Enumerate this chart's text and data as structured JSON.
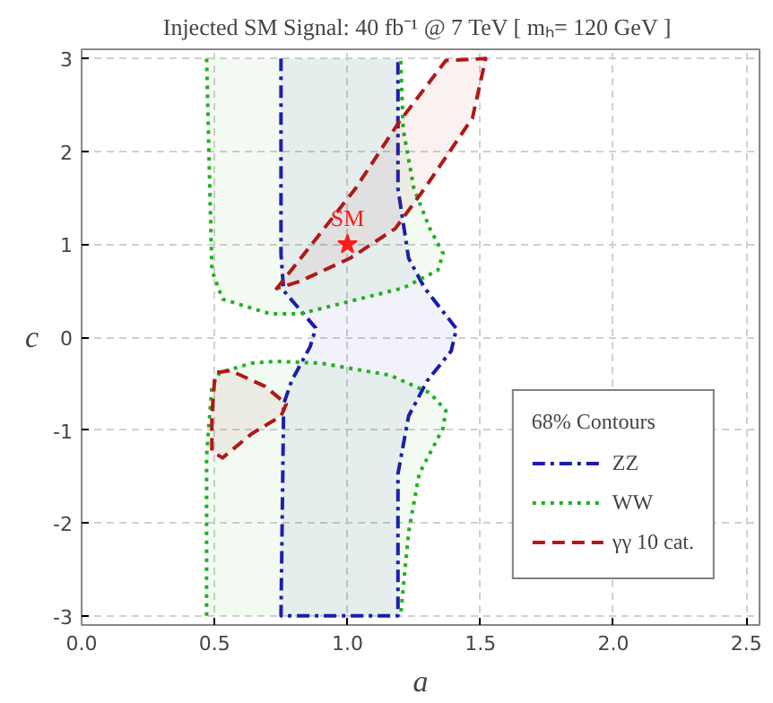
{
  "chart_data": {
    "type": "line",
    "title": "Injected SM Signal:  40 fb⁻¹ @ 7 TeV [ mₕ= 120 GeV ]",
    "xlabel": "a",
    "ylabel": "c",
    "legend_title": "68% Contours",
    "legend": "bottom right",
    "grid": true,
    "xlim": [
      0,
      2.55
    ],
    "ylim": [
      -3.1,
      3.1
    ],
    "xticks": [
      {
        "value": 0,
        "label": "0.0"
      },
      {
        "value": 0.5,
        "label": "0.5"
      },
      {
        "value": 1,
        "label": "1.0"
      },
      {
        "value": 1.5,
        "label": "1.5"
      },
      {
        "value": 2,
        "label": "2.0"
      },
      {
        "value": 2.5,
        "label": "2.5"
      }
    ],
    "yticks": [
      -3,
      -2,
      -1,
      0,
      1,
      2,
      3
    ],
    "annotations": [
      {
        "text": "SM",
        "x": 1,
        "y": 1
      }
    ],
    "series": [
      {
        "name": "ZZ",
        "line_style": "dashdot",
        "color": "#1a1ab0",
        "x": [
          0.75,
          0.75,
          0.75,
          0.76,
          0.88,
          0.88,
          0.86,
          0.79,
          0.76,
          0.75,
          1.19,
          1.19,
          1.23,
          1.3,
          1.39,
          1.41,
          1.41,
          1.29,
          1.23,
          1.19,
          1.19
        ],
        "values": [
          3,
          1.6,
          0.9,
          0.5,
          0.1,
          0.09,
          -0.1,
          -0.47,
          -0.72,
          -3,
          -3,
          -1.47,
          -0.85,
          -0.47,
          -0.15,
          0.09,
          0.09,
          0.53,
          0.85,
          1.6,
          3
        ]
      },
      {
        "name": "WW",
        "line_style": "dotted",
        "color": "#22b022",
        "x": [
          0.47,
          0.49,
          0.53,
          0.71,
          0.82,
          1.21,
          1.34,
          1.36,
          1.31,
          1.25,
          1.21,
          1.2,
          null,
          0.47,
          0.47,
          0.49,
          0.52,
          0.64,
          0.73,
          0.9,
          1.16,
          1.31,
          1.37,
          1.36,
          1.27,
          1.23,
          1.2
        ],
        "values": [
          3,
          0.72,
          0.41,
          0.25,
          0.25,
          0.53,
          0.72,
          0.9,
          1.17,
          1.6,
          2.23,
          3,
          null,
          -3,
          -1.28,
          -0.53,
          -0.38,
          -0.28,
          -0.26,
          -0.28,
          -0.41,
          -0.6,
          -0.79,
          -0.98,
          -1.47,
          -2.1,
          -3
        ]
      },
      {
        "name": "γγ 10 cat.",
        "line_style": "dashed",
        "color": "#b01818",
        "x": [
          0.73,
          0.86,
          1.03,
          1.19,
          1.37,
          1.52,
          1.47,
          1.29,
          1.18,
          1.01,
          0.82,
          0.74,
          null,
          0.51,
          0.56,
          0.69,
          0.77,
          0.75,
          0.64,
          0.53,
          0.49,
          0.49,
          0.5,
          0.505
        ],
        "values": [
          0.51,
          0.98,
          1.6,
          2.3,
          2.98,
          3,
          2.36,
          1.6,
          1.17,
          0.85,
          0.6,
          0.53,
          null,
          -0.38,
          -0.36,
          -0.53,
          -0.72,
          -0.85,
          -1.04,
          -1.3,
          -1.23,
          -0.85,
          -0.47,
          -0.4
        ]
      },
      {
        "type": "scatter",
        "marker": "star",
        "color": "#ff1a1a",
        "x": [
          1
        ],
        "values": [
          1
        ]
      }
    ]
  }
}
